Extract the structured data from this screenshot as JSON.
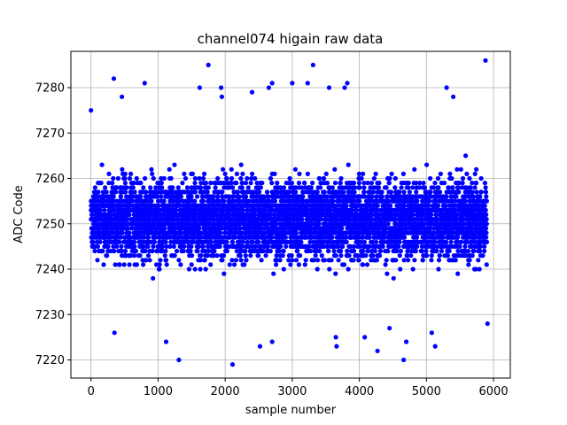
{
  "chart_data": {
    "type": "scatter",
    "title": "channel074 higain raw data",
    "xlabel": "sample number",
    "ylabel": "ADC Code",
    "xlim": [
      -300,
      6250
    ],
    "ylim": [
      7216,
      7288
    ],
    "xticks": [
      0,
      1000,
      2000,
      3000,
      4000,
      5000,
      6000
    ],
    "yticks": [
      7220,
      7230,
      7240,
      7250,
      7260,
      7270,
      7280
    ],
    "grid": true,
    "marker_color": "#0000ff",
    "series": [
      {
        "n_samples": 5900,
        "x_range": [
          0,
          5900
        ],
        "bulk_range": [
          7236,
          7266
        ],
        "mean": 7251,
        "outliers": [
          {
            "x": 0,
            "y": 7275
          },
          {
            "x": 340,
            "y": 7282
          },
          {
            "x": 350,
            "y": 7226
          },
          {
            "x": 460,
            "y": 7278
          },
          {
            "x": 800,
            "y": 7281
          },
          {
            "x": 1120,
            "y": 7224
          },
          {
            "x": 1310,
            "y": 7220
          },
          {
            "x": 1620,
            "y": 7280
          },
          {
            "x": 1750,
            "y": 7285
          },
          {
            "x": 1940,
            "y": 7280
          },
          {
            "x": 1950,
            "y": 7278
          },
          {
            "x": 2110,
            "y": 7219
          },
          {
            "x": 2400,
            "y": 7279
          },
          {
            "x": 2520,
            "y": 7223
          },
          {
            "x": 2650,
            "y": 7280
          },
          {
            "x": 2700,
            "y": 7224
          },
          {
            "x": 2700,
            "y": 7281
          },
          {
            "x": 3000,
            "y": 7281
          },
          {
            "x": 3230,
            "y": 7281
          },
          {
            "x": 3310,
            "y": 7285
          },
          {
            "x": 3550,
            "y": 7280
          },
          {
            "x": 3650,
            "y": 7225
          },
          {
            "x": 3660,
            "y": 7223
          },
          {
            "x": 3780,
            "y": 7280
          },
          {
            "x": 3820,
            "y": 7281
          },
          {
            "x": 4080,
            "y": 7225
          },
          {
            "x": 4270,
            "y": 7222
          },
          {
            "x": 4450,
            "y": 7227
          },
          {
            "x": 4660,
            "y": 7220
          },
          {
            "x": 4700,
            "y": 7224
          },
          {
            "x": 5080,
            "y": 7226
          },
          {
            "x": 5130,
            "y": 7223
          },
          {
            "x": 5300,
            "y": 7280
          },
          {
            "x": 5400,
            "y": 7278
          },
          {
            "x": 5880,
            "y": 7286
          },
          {
            "x": 5910,
            "y": 7228
          }
        ]
      }
    ]
  }
}
